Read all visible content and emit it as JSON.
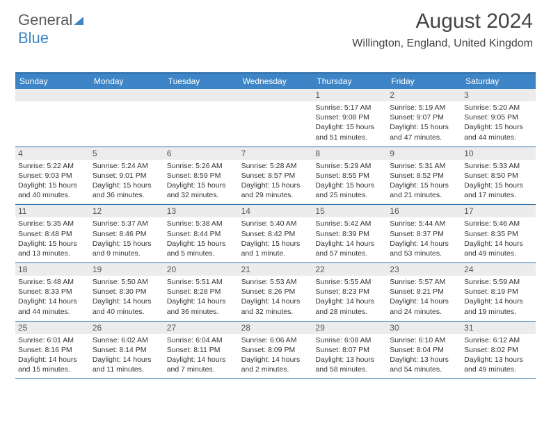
{
  "logo": {
    "word1": "General",
    "word2": "Blue"
  },
  "title": "August 2024",
  "subtitle": "Willington, England, United Kingdom",
  "colors": {
    "header_bg": "#3d85c6",
    "header_border": "#2f6ea8",
    "daynum_bg": "#ececec",
    "text": "#333333"
  },
  "day_names": [
    "Sunday",
    "Monday",
    "Tuesday",
    "Wednesday",
    "Thursday",
    "Friday",
    "Saturday"
  ],
  "weeks": [
    [
      {
        "day": "",
        "sunrise": "",
        "sunset": "",
        "daylight": ""
      },
      {
        "day": "",
        "sunrise": "",
        "sunset": "",
        "daylight": ""
      },
      {
        "day": "",
        "sunrise": "",
        "sunset": "",
        "daylight": ""
      },
      {
        "day": "",
        "sunrise": "",
        "sunset": "",
        "daylight": ""
      },
      {
        "day": "1",
        "sunrise": "Sunrise: 5:17 AM",
        "sunset": "Sunset: 9:08 PM",
        "daylight": "Daylight: 15 hours and 51 minutes."
      },
      {
        "day": "2",
        "sunrise": "Sunrise: 5:19 AM",
        "sunset": "Sunset: 9:07 PM",
        "daylight": "Daylight: 15 hours and 47 minutes."
      },
      {
        "day": "3",
        "sunrise": "Sunrise: 5:20 AM",
        "sunset": "Sunset: 9:05 PM",
        "daylight": "Daylight: 15 hours and 44 minutes."
      }
    ],
    [
      {
        "day": "4",
        "sunrise": "Sunrise: 5:22 AM",
        "sunset": "Sunset: 9:03 PM",
        "daylight": "Daylight: 15 hours and 40 minutes."
      },
      {
        "day": "5",
        "sunrise": "Sunrise: 5:24 AM",
        "sunset": "Sunset: 9:01 PM",
        "daylight": "Daylight: 15 hours and 36 minutes."
      },
      {
        "day": "6",
        "sunrise": "Sunrise: 5:26 AM",
        "sunset": "Sunset: 8:59 PM",
        "daylight": "Daylight: 15 hours and 32 minutes."
      },
      {
        "day": "7",
        "sunrise": "Sunrise: 5:28 AM",
        "sunset": "Sunset: 8:57 PM",
        "daylight": "Daylight: 15 hours and 29 minutes."
      },
      {
        "day": "8",
        "sunrise": "Sunrise: 5:29 AM",
        "sunset": "Sunset: 8:55 PM",
        "daylight": "Daylight: 15 hours and 25 minutes."
      },
      {
        "day": "9",
        "sunrise": "Sunrise: 5:31 AM",
        "sunset": "Sunset: 8:52 PM",
        "daylight": "Daylight: 15 hours and 21 minutes."
      },
      {
        "day": "10",
        "sunrise": "Sunrise: 5:33 AM",
        "sunset": "Sunset: 8:50 PM",
        "daylight": "Daylight: 15 hours and 17 minutes."
      }
    ],
    [
      {
        "day": "11",
        "sunrise": "Sunrise: 5:35 AM",
        "sunset": "Sunset: 8:48 PM",
        "daylight": "Daylight: 15 hours and 13 minutes."
      },
      {
        "day": "12",
        "sunrise": "Sunrise: 5:37 AM",
        "sunset": "Sunset: 8:46 PM",
        "daylight": "Daylight: 15 hours and 9 minutes."
      },
      {
        "day": "13",
        "sunrise": "Sunrise: 5:38 AM",
        "sunset": "Sunset: 8:44 PM",
        "daylight": "Daylight: 15 hours and 5 minutes."
      },
      {
        "day": "14",
        "sunrise": "Sunrise: 5:40 AM",
        "sunset": "Sunset: 8:42 PM",
        "daylight": "Daylight: 15 hours and 1 minute."
      },
      {
        "day": "15",
        "sunrise": "Sunrise: 5:42 AM",
        "sunset": "Sunset: 8:39 PM",
        "daylight": "Daylight: 14 hours and 57 minutes."
      },
      {
        "day": "16",
        "sunrise": "Sunrise: 5:44 AM",
        "sunset": "Sunset: 8:37 PM",
        "daylight": "Daylight: 14 hours and 53 minutes."
      },
      {
        "day": "17",
        "sunrise": "Sunrise: 5:46 AM",
        "sunset": "Sunset: 8:35 PM",
        "daylight": "Daylight: 14 hours and 49 minutes."
      }
    ],
    [
      {
        "day": "18",
        "sunrise": "Sunrise: 5:48 AM",
        "sunset": "Sunset: 8:33 PM",
        "daylight": "Daylight: 14 hours and 44 minutes."
      },
      {
        "day": "19",
        "sunrise": "Sunrise: 5:50 AM",
        "sunset": "Sunset: 8:30 PM",
        "daylight": "Daylight: 14 hours and 40 minutes."
      },
      {
        "day": "20",
        "sunrise": "Sunrise: 5:51 AM",
        "sunset": "Sunset: 8:28 PM",
        "daylight": "Daylight: 14 hours and 36 minutes."
      },
      {
        "day": "21",
        "sunrise": "Sunrise: 5:53 AM",
        "sunset": "Sunset: 8:26 PM",
        "daylight": "Daylight: 14 hours and 32 minutes."
      },
      {
        "day": "22",
        "sunrise": "Sunrise: 5:55 AM",
        "sunset": "Sunset: 8:23 PM",
        "daylight": "Daylight: 14 hours and 28 minutes."
      },
      {
        "day": "23",
        "sunrise": "Sunrise: 5:57 AM",
        "sunset": "Sunset: 8:21 PM",
        "daylight": "Daylight: 14 hours and 24 minutes."
      },
      {
        "day": "24",
        "sunrise": "Sunrise: 5:59 AM",
        "sunset": "Sunset: 8:19 PM",
        "daylight": "Daylight: 14 hours and 19 minutes."
      }
    ],
    [
      {
        "day": "25",
        "sunrise": "Sunrise: 6:01 AM",
        "sunset": "Sunset: 8:16 PM",
        "daylight": "Daylight: 14 hours and 15 minutes."
      },
      {
        "day": "26",
        "sunrise": "Sunrise: 6:02 AM",
        "sunset": "Sunset: 8:14 PM",
        "daylight": "Daylight: 14 hours and 11 minutes."
      },
      {
        "day": "27",
        "sunrise": "Sunrise: 6:04 AM",
        "sunset": "Sunset: 8:11 PM",
        "daylight": "Daylight: 14 hours and 7 minutes."
      },
      {
        "day": "28",
        "sunrise": "Sunrise: 6:06 AM",
        "sunset": "Sunset: 8:09 PM",
        "daylight": "Daylight: 14 hours and 2 minutes."
      },
      {
        "day": "29",
        "sunrise": "Sunrise: 6:08 AM",
        "sunset": "Sunset: 8:07 PM",
        "daylight": "Daylight: 13 hours and 58 minutes."
      },
      {
        "day": "30",
        "sunrise": "Sunrise: 6:10 AM",
        "sunset": "Sunset: 8:04 PM",
        "daylight": "Daylight: 13 hours and 54 minutes."
      },
      {
        "day": "31",
        "sunrise": "Sunrise: 6:12 AM",
        "sunset": "Sunset: 8:02 PM",
        "daylight": "Daylight: 13 hours and 49 minutes."
      }
    ]
  ]
}
